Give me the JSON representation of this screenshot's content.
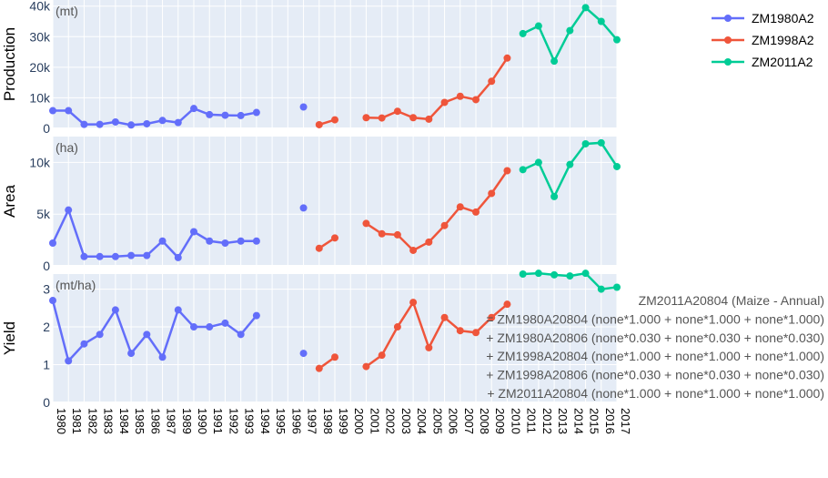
{
  "chart_data": {
    "type": "line",
    "years": [
      "1980",
      "1981",
      "1982",
      "1983",
      "1984",
      "1985",
      "1986",
      "1987",
      "1989",
      "1990",
      "1991",
      "1992",
      "1993",
      "1994",
      "1995",
      "1996",
      "1997",
      "1998",
      "1999",
      "2000",
      "2001",
      "2002",
      "2003",
      "2004",
      "2005",
      "2006",
      "2007",
      "2008",
      "2009",
      "2010",
      "2011",
      "2012",
      "2013",
      "2014",
      "2015",
      "2016",
      "2017"
    ],
    "legend": [
      {
        "name": "ZM1980A2",
        "color": "#636efa"
      },
      {
        "name": "ZM1998A2",
        "color": "#ef553b"
      },
      {
        "name": "ZM2011A2",
        "color": "#00cc96"
      }
    ],
    "panels": [
      {
        "ylabel": "Production",
        "unit": "(mt)",
        "ylim": [
          0,
          42000
        ],
        "ticks": [
          {
            "v": 0,
            "label": "0"
          },
          {
            "v": 10000,
            "label": "10k"
          },
          {
            "v": 20000,
            "label": "20k"
          },
          {
            "v": 30000,
            "label": "30k"
          },
          {
            "v": 40000,
            "label": "40k"
          }
        ],
        "series": [
          {
            "legend": 0,
            "segments": [
              [
                [
                  "1980",
                  5800
                ],
                [
                  "1981",
                  5800
                ],
                [
                  "1982",
                  1300
                ],
                [
                  "1983",
                  1300
                ],
                [
                  "1984",
                  2100
                ],
                [
                  "1985",
                  1100
                ],
                [
                  "1986",
                  1500
                ],
                [
                  "1987",
                  2600
                ],
                [
                  "1989",
                  1900
                ],
                [
                  "1990",
                  6500
                ],
                [
                  "1991",
                  4500
                ],
                [
                  "1992",
                  4300
                ],
                [
                  "1993",
                  4200
                ],
                [
                  "1994",
                  5200
                ]
              ],
              [
                [
                  "1997",
                  7000
                ]
              ]
            ]
          },
          {
            "legend": 1,
            "segments": [
              [
                [
                  "1998",
                  1200
                ],
                [
                  "1999",
                  2800
                ]
              ],
              [
                [
                  "2001",
                  3500
                ],
                [
                  "2002",
                  3400
                ],
                [
                  "2003",
                  5600
                ],
                [
                  "2004",
                  3500
                ],
                [
                  "2005",
                  3000
                ],
                [
                  "2006",
                  8500
                ],
                [
                  "2007",
                  10500
                ],
                [
                  "2008",
                  9400
                ],
                [
                  "2009",
                  15400
                ],
                [
                  "2010",
                  23000
                ]
              ]
            ]
          },
          {
            "legend": 2,
            "segments": [
              [
                [
                  "2011",
                  31000
                ],
                [
                  "2012",
                  33500
                ],
                [
                  "2013",
                  22000
                ],
                [
                  "2014",
                  32000
                ],
                [
                  "2015",
                  39500
                ],
                [
                  "2016",
                  35000
                ],
                [
                  "2017",
                  29000
                ]
              ]
            ]
          }
        ]
      },
      {
        "ylabel": "Area",
        "unit": "(ha)",
        "ylim": [
          0,
          12500
        ],
        "ticks": [
          {
            "v": 0,
            "label": "0"
          },
          {
            "v": 5000,
            "label": "5k"
          },
          {
            "v": 10000,
            "label": "10k"
          }
        ],
        "series": [
          {
            "legend": 0,
            "segments": [
              [
                [
                  "1980",
                  2200
                ],
                [
                  "1981",
                  5400
                ],
                [
                  "1982",
                  900
                ],
                [
                  "1983",
                  900
                ],
                [
                  "1984",
                  900
                ],
                [
                  "1985",
                  1000
                ],
                [
                  "1986",
                  1000
                ],
                [
                  "1987",
                  2400
                ],
                [
                  "1989",
                  800
                ],
                [
                  "1990",
                  3300
                ],
                [
                  "1991",
                  2400
                ],
                [
                  "1992",
                  2200
                ],
                [
                  "1993",
                  2400
                ],
                [
                  "1994",
                  2400
                ]
              ],
              [
                [
                  "1997",
                  5600
                ]
              ]
            ]
          },
          {
            "legend": 1,
            "segments": [
              [
                [
                  "1998",
                  1700
                ],
                [
                  "1999",
                  2700
                ]
              ],
              [
                [
                  "2001",
                  4100
                ],
                [
                  "2002",
                  3100
                ],
                [
                  "2003",
                  3000
                ],
                [
                  "2004",
                  1500
                ],
                [
                  "2005",
                  2300
                ],
                [
                  "2006",
                  3900
                ],
                [
                  "2007",
                  5700
                ],
                [
                  "2008",
                  5200
                ],
                [
                  "2009",
                  7000
                ],
                [
                  "2010",
                  9200
                ]
              ]
            ]
          },
          {
            "legend": 2,
            "segments": [
              [
                [
                  "2011",
                  9300
                ],
                [
                  "2012",
                  10000
                ],
                [
                  "2013",
                  6700
                ],
                [
                  "2014",
                  9800
                ],
                [
                  "2015",
                  11800
                ],
                [
                  "2016",
                  11900
                ],
                [
                  "2017",
                  9600
                ]
              ]
            ]
          }
        ]
      },
      {
        "ylabel": "Yield",
        "unit": "(mt/ha)",
        "ylim": [
          0,
          3.4
        ],
        "ticks": [
          {
            "v": 0,
            "label": "0"
          },
          {
            "v": 1,
            "label": "1"
          },
          {
            "v": 2,
            "label": "2"
          },
          {
            "v": 3,
            "label": "3"
          }
        ],
        "series": [
          {
            "legend": 0,
            "segments": [
              [
                [
                  "1980",
                  2.7
                ],
                [
                  "1981",
                  1.1
                ],
                [
                  "1982",
                  1.55
                ],
                [
                  "1983",
                  1.8
                ],
                [
                  "1984",
                  2.45
                ],
                [
                  "1985",
                  1.3
                ],
                [
                  "1986",
                  1.8
                ],
                [
                  "1987",
                  1.2
                ],
                [
                  "1989",
                  2.45
                ],
                [
                  "1990",
                  2.0
                ],
                [
                  "1991",
                  2.0
                ],
                [
                  "1992",
                  2.1
                ],
                [
                  "1993",
                  1.8
                ],
                [
                  "1994",
                  2.3
                ]
              ],
              [
                [
                  "1997",
                  1.3
                ]
              ]
            ]
          },
          {
            "legend": 1,
            "segments": [
              [
                [
                  "1998",
                  0.9
                ],
                [
                  "1999",
                  1.2
                ]
              ],
              [
                [
                  "2001",
                  0.95
                ],
                [
                  "2002",
                  1.25
                ],
                [
                  "2003",
                  2.0
                ],
                [
                  "2004",
                  2.65
                ],
                [
                  "2005",
                  1.45
                ],
                [
                  "2006",
                  2.25
                ],
                [
                  "2007",
                  1.9
                ],
                [
                  "2008",
                  1.85
                ],
                [
                  "2009",
                  2.25
                ],
                [
                  "2010",
                  2.6
                ]
              ]
            ]
          },
          {
            "legend": 2,
            "segments": [
              [
                [
                  "2011",
                  3.4
                ],
                [
                  "2012",
                  3.42
                ],
                [
                  "2013",
                  3.38
                ],
                [
                  "2014",
                  3.35
                ],
                [
                  "2015",
                  3.42
                ],
                [
                  "2016",
                  3.0
                ],
                [
                  "2017",
                  3.05
                ]
              ]
            ]
          }
        ]
      }
    ],
    "tooltip": [
      "ZM2011A20804 (Maize - Annual)",
      "= ZM1980A20804 (none*1.000 + none*1.000 + none*1.000)",
      "+ ZM1980A20806 (none*0.030 + none*0.030 + none*0.030)",
      "+ ZM1998A20804 (none*1.000 + none*1.000 + none*1.000)",
      "+ ZM1998A20806 (none*0.030 + none*0.030 + none*0.030)",
      "+ ZM2011A20804 (none*1.000 + none*1.000 + none*1.000)"
    ]
  }
}
